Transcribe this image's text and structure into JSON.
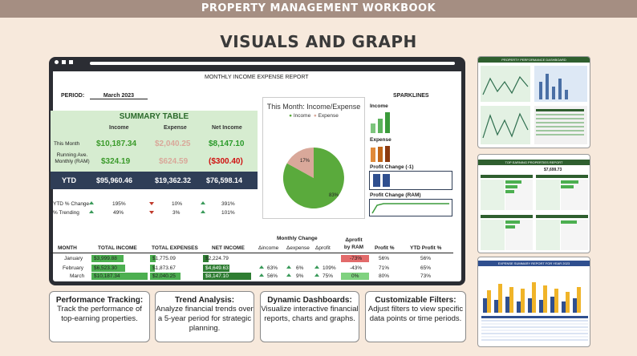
{
  "header": {
    "banner": "PROPERTY MANAGEMENT WORKBOOK",
    "title": "VISUALS AND GRAPH"
  },
  "report": {
    "title": "MONTHLY INCOME EXPENSE REPORT",
    "period_label": "PERIOD:",
    "period_value": "March 2023",
    "summary_title": "SUMMARY TABLE",
    "columns": [
      "Income",
      "Expense",
      "Net Income"
    ],
    "this_month_label": "This Month",
    "this_month": [
      "$10,187.34",
      "$2,040.25",
      "$8,147.10"
    ],
    "running_label": "Running Ave. Monthly (RAM)",
    "running": [
      "$324.19",
      "$624.59",
      "($300.40)"
    ],
    "ytd_label": "YTD",
    "ytd": [
      "$95,960.46",
      "$19,362.32",
      "$76,598.14"
    ],
    "ytd_change_label": "YTD % Change",
    "ytd_change": [
      "195%",
      "10%",
      "391%"
    ],
    "trending_label": "% Trending",
    "trending": [
      "49%",
      "3%",
      "101%"
    ]
  },
  "pie": {
    "title": "This Month: Income/Expense",
    "legend": [
      "Income",
      "Expense"
    ],
    "income_pct": "83%",
    "expense_pct": "17%",
    "income_color": "#5aaa3c",
    "expense_color": "#d9a89a"
  },
  "sparklines": {
    "title": "SPARKLINES",
    "labels": [
      "Income",
      "Expense",
      "Profit Change (-1)",
      "Profit Change (RAM)"
    ]
  },
  "monthly": {
    "group_header": "Monthly Change",
    "headers": [
      "MONTH",
      "TOTAL INCOME",
      "TOTAL EXPENSES",
      "NET INCOME",
      "Δincome",
      "Δexpense",
      "Δprofit",
      "Δprofit by RAM",
      "Profit %",
      "YTD Profit %"
    ],
    "rows": [
      {
        "month": "January",
        "income": "$3,999.88",
        "expenses": "$1,775.09",
        "net": "$2,224.79",
        "dinc": "",
        "dexp": "",
        "dprof": "",
        "dram": "-73%",
        "profit": "56%",
        "ytd": "56%"
      },
      {
        "month": "February",
        "income": "$6,523.30",
        "expenses": "$1,873.67",
        "net": "$4,649.63",
        "dinc": "63%",
        "dexp": "6%",
        "dprof": "109%",
        "dram": "-43%",
        "profit": "71%",
        "ytd": "65%"
      },
      {
        "month": "March",
        "income": "$10,187.34",
        "expenses": "$2,040.25",
        "net": "$8,147.10",
        "dinc": "56%",
        "dexp": "9%",
        "dprof": "75%",
        "dram": "0%",
        "profit": "80%",
        "ytd": "73%"
      }
    ]
  },
  "cards": [
    {
      "title": "Performance Tracking:",
      "desc": "Track the performance of top-earning properties."
    },
    {
      "title": "Trend Analysis:",
      "desc": "Analyze financial trends over a 5-year period for strategic planning."
    },
    {
      "title": "Dynamic Dashboards:",
      "desc": "Visualize interactive financial reports, charts and graphs."
    },
    {
      "title": "Customizable Filters:",
      "desc": "Adjust filters to view specific data points or time periods."
    }
  ],
  "thumbs": {
    "t1_title": "PROPERTY PERFORMANCE DASHBOARD",
    "t2_title": "TOP EARNING PROPERTIES REPORT",
    "t2_value": "$7,699.73",
    "t3_title": "EXPENSE SUMMARY REPORT FOR YEAR 2023"
  }
}
